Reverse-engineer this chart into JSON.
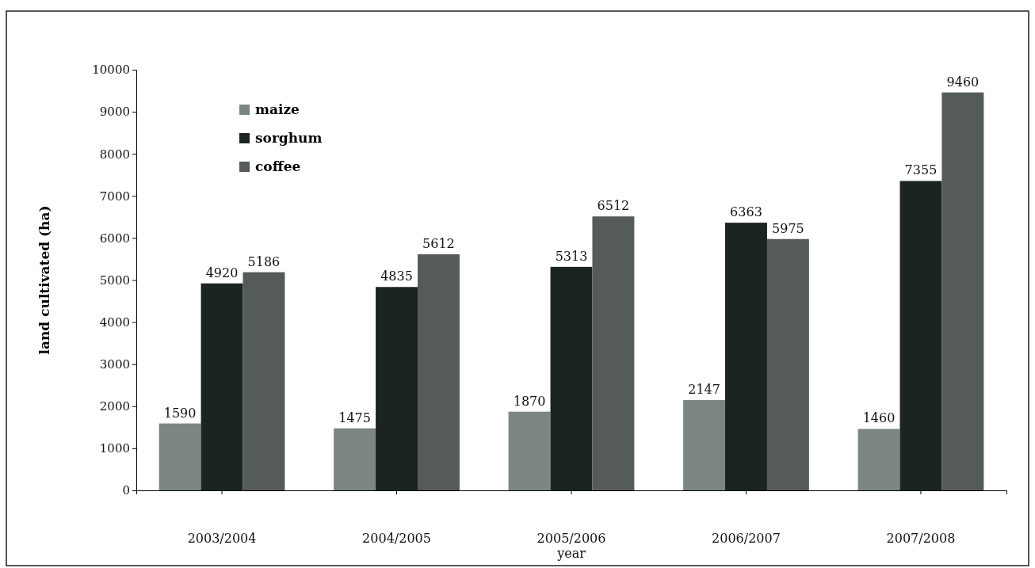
{
  "chart_data": {
    "type": "bar",
    "xlabel": "year",
    "ylabel": "land cultivated (ha)",
    "categories": [
      "2003/2004",
      "2004/2005",
      "2005/2006",
      "2006/2007",
      "2007/2008"
    ],
    "series": [
      {
        "name": "maize",
        "color": "#7b8682",
        "values": [
          1590,
          1475,
          1870,
          2147,
          1460
        ]
      },
      {
        "name": "sorghum",
        "color": "#1b2323",
        "values": [
          4920,
          4835,
          5313,
          6363,
          7355
        ]
      },
      {
        "name": "coffee",
        "color": "#545b5a",
        "values": [
          5186,
          5612,
          6512,
          5975,
          9460
        ]
      }
    ],
    "ylim": [
      0,
      10000
    ],
    "yticks": [
      0,
      1000,
      2000,
      3000,
      4000,
      5000,
      6000,
      7000,
      8000,
      9000,
      10000
    ],
    "data_labels": true,
    "legend": "top left",
    "grid": false
  }
}
